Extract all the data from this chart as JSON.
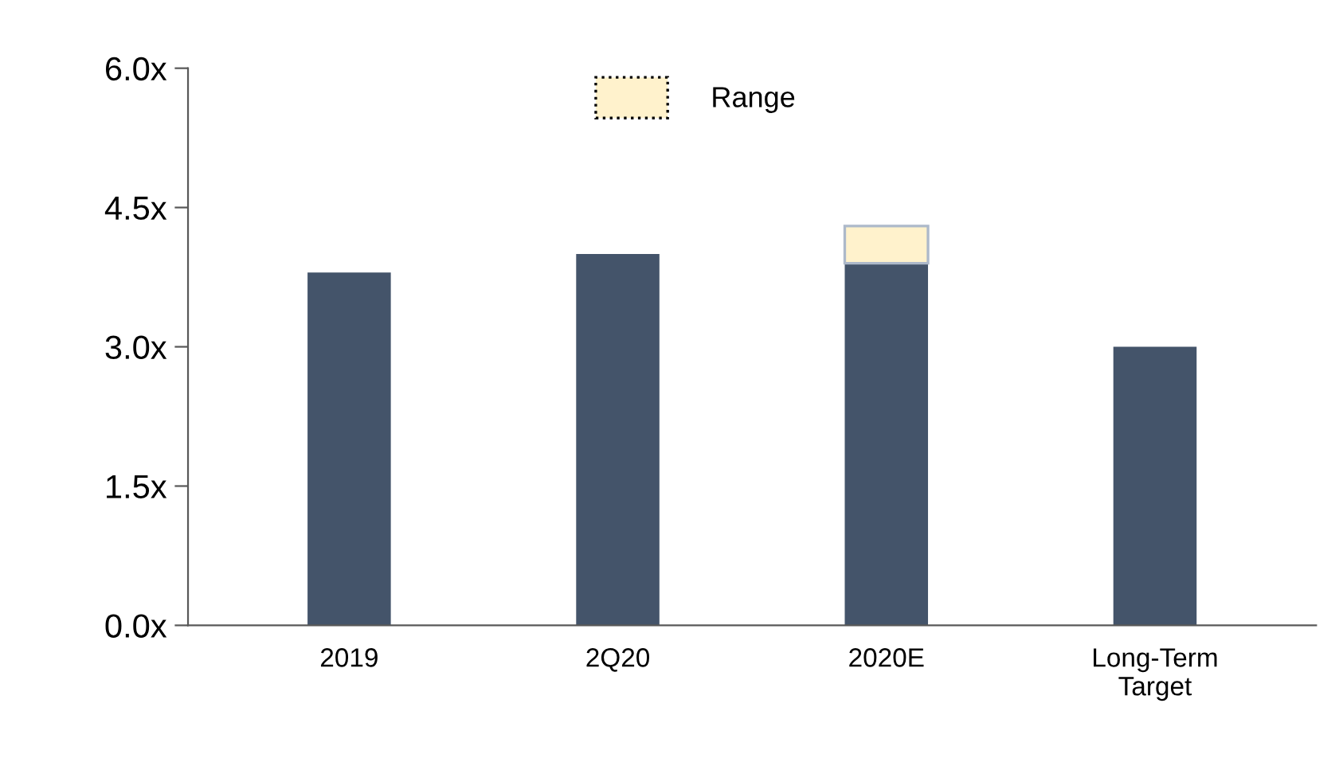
{
  "chart_data": {
    "type": "bar",
    "stacked": true,
    "categories": [
      "2019",
      "2Q20",
      "2020E",
      "Long-Term\nTarget"
    ],
    "series": [
      {
        "color": "#44546a",
        "values": [
          3.8,
          4.0,
          3.9,
          3.0
        ]
      },
      {
        "name": "Range",
        "color": "#fff2cc",
        "values": [
          null,
          null,
          0.4,
          null
        ]
      }
    ],
    "ylim": [
      0,
      6
    ],
    "yticks": [
      {
        "value": 0,
        "label": "0.0x"
      },
      {
        "value": 1.5,
        "label": "1.5x"
      },
      {
        "value": 3,
        "label": "3.0x"
      },
      {
        "value": 4.5,
        "label": "4.5x"
      },
      {
        "value": 6,
        "label": "6.0x"
      }
    ],
    "grid": false,
    "legend": "top"
  }
}
